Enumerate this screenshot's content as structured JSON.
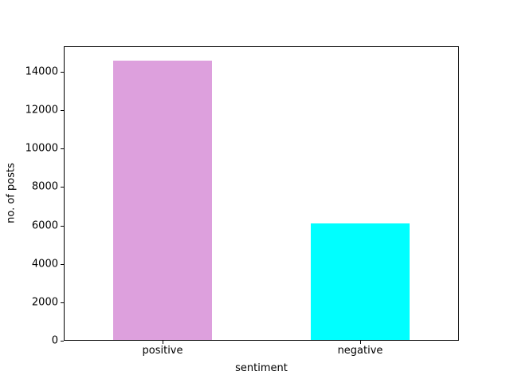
{
  "chart_data": {
    "type": "bar",
    "categories": [
      "positive",
      "negative"
    ],
    "values": [
      14600,
      6100
    ],
    "bar_colors": [
      "#dda0dd",
      "#00ffff"
    ],
    "title": "",
    "xlabel": "sentiment",
    "ylabel": "no. of posts",
    "ylim": [
      0,
      15330
    ],
    "yticks": [
      0,
      2000,
      4000,
      6000,
      8000,
      10000,
      12000,
      14000
    ],
    "bar_width_fraction": 0.5,
    "grid": false,
    "legend": "none",
    "background_color": "#ffffff",
    "spine_color": "#000000",
    "text_color": "#000000"
  }
}
